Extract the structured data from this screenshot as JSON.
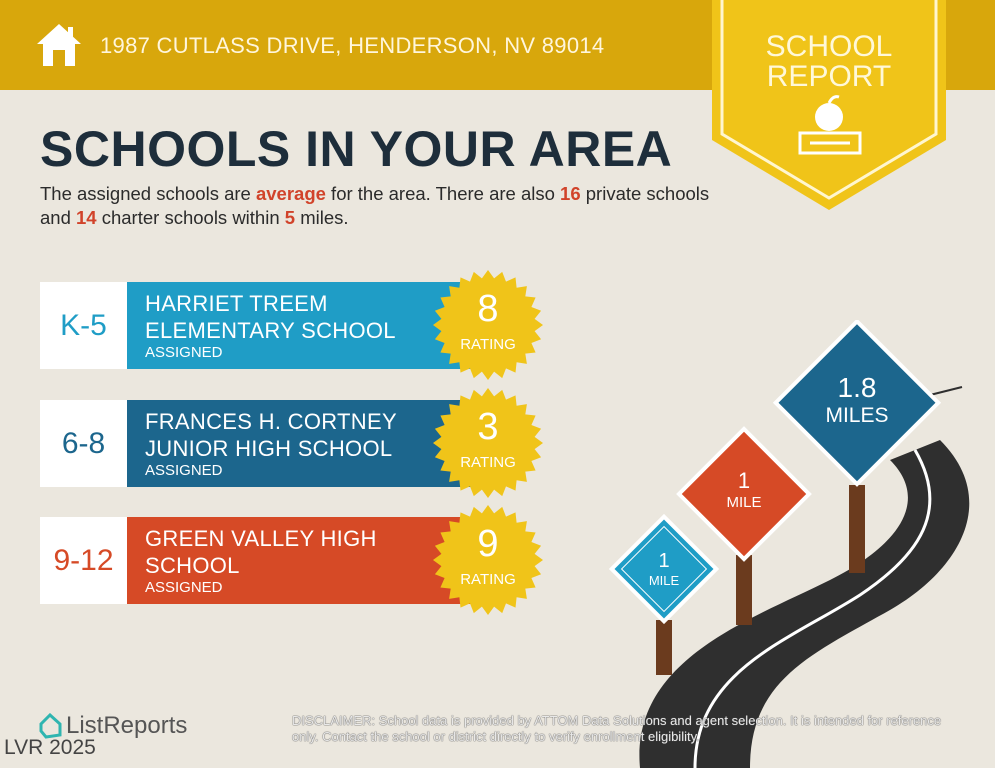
{
  "header": {
    "address": "1987 CUTLASS DRIVE, HENDERSON, NV 89014",
    "badge_line1": "SCHOOL",
    "badge_line2": "REPORT"
  },
  "title": "SCHOOLS IN YOUR AREA",
  "intro": {
    "p1": "The assigned schools are ",
    "rating_word": "average",
    "p2": " for the area. There are also ",
    "private_count": "16",
    "p3": " private schools and ",
    "charter_count": "14",
    "p4": " charter schools within ",
    "miles": "5",
    "p5": " miles."
  },
  "schools": [
    {
      "grade": "K-5",
      "name1": "HARRIET TREEM",
      "name2": "ELEMENTARY SCHOOL",
      "status": "ASSIGNED",
      "rating": "8",
      "rating_label": "RATING",
      "color": "#1f9dc6"
    },
    {
      "grade": "6-8",
      "name1": "FRANCES H. CORTNEY",
      "name2": "JUNIOR HIGH SCHOOL",
      "status": "ASSIGNED",
      "rating": "3",
      "rating_label": "RATING",
      "color": "#1c668d"
    },
    {
      "grade": "9-12",
      "name1": "GREEN VALLEY HIGH",
      "name2": "SCHOOL",
      "status": "ASSIGNED",
      "rating": "9",
      "rating_label": "RATING",
      "color": "#d64a26"
    }
  ],
  "signs": [
    {
      "value": "1",
      "unit": "MILE",
      "color": "#1f9dc6"
    },
    {
      "value": "1",
      "unit": "MILE",
      "color": "#d64a26"
    },
    {
      "value": "1.8",
      "unit": "MILES",
      "color": "#1c668d"
    }
  ],
  "footer": {
    "logo": "ListReports",
    "watermark": "LVR 2025",
    "disclaimer_label": "DISCLAIMER:",
    "disclaimer": " School data is provided by ATTOM Data Solutions and agent selection. It is intended for reference only. Contact the school or district directly to verify enrollment eligibility."
  }
}
